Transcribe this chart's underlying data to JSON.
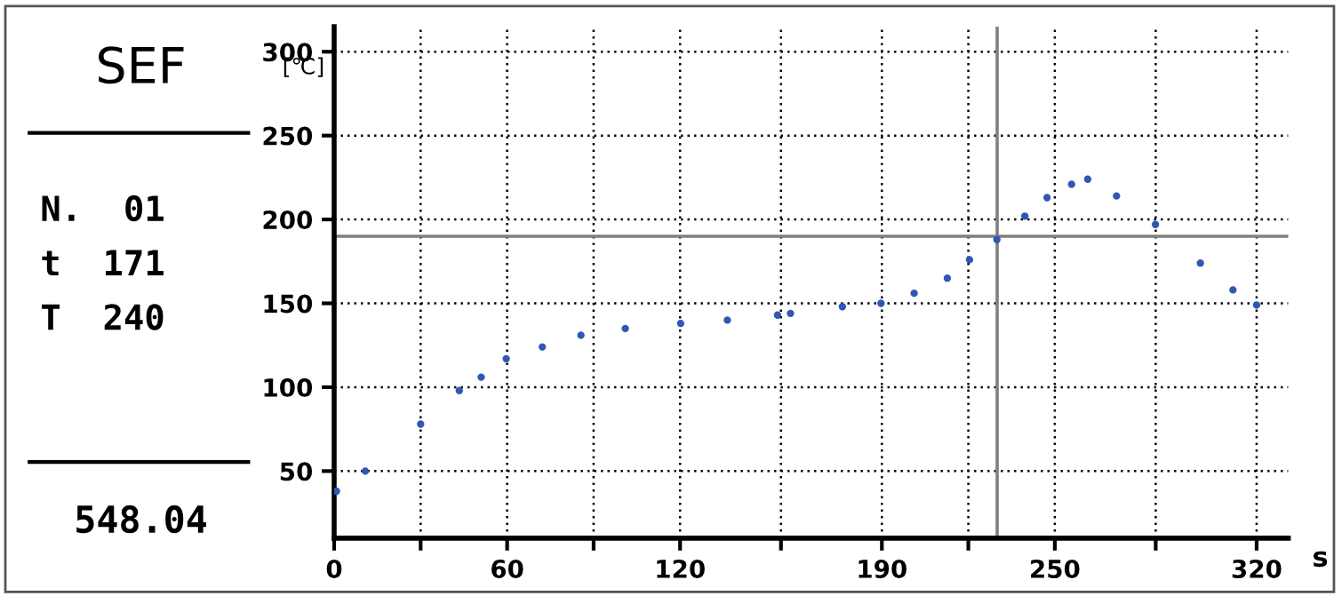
{
  "chart_data": {
    "type": "scatter",
    "title": "SEF",
    "xlabel": "s",
    "ylabel": "[℃]",
    "annotations": [
      "N.  01",
      "t  171",
      "T  240",
      "548.04"
    ],
    "x": [
      0.8,
      10.8,
      30,
      43.4,
      51,
      59.7,
      72.2,
      85.6,
      101,
      120.2,
      136.4,
      153.8,
      158.3,
      176.3,
      189.7,
      201.2,
      212.7,
      220.4,
      229.9,
      239.6,
      247.3,
      255.8,
      261.4,
      271.4,
      284.9,
      300.5,
      311.8,
      320
    ],
    "series": [
      {
        "color": "#2f57b4",
        "values": [
          38,
          50,
          78,
          98,
          106,
          117,
          124,
          131,
          135,
          138,
          140,
          143,
          144,
          148,
          150,
          156,
          165,
          176,
          188,
          202,
          213,
          221,
          224,
          214,
          197,
          174,
          158,
          149
        ]
      }
    ],
    "marker": "circle",
    "xlim": [
      0,
      331
    ],
    "ylim": [
      10,
      315
    ],
    "xticks": [
      0,
      {
        "value": 30,
        "label": null
      },
      60,
      {
        "value": 90,
        "label": null
      },
      120,
      {
        "value": 155,
        "label": null
      },
      190,
      {
        "value": 220,
        "label": null
      },
      250,
      {
        "value": 285,
        "label": null
      },
      320
    ],
    "yticks": [
      50,
      100,
      150,
      200,
      250,
      300
    ],
    "grid": true,
    "ref_lines": [
      {
        "axis": "y",
        "value": 190,
        "color": "#808080"
      },
      {
        "axis": "x",
        "value": 230,
        "color": "#808080"
      }
    ]
  }
}
